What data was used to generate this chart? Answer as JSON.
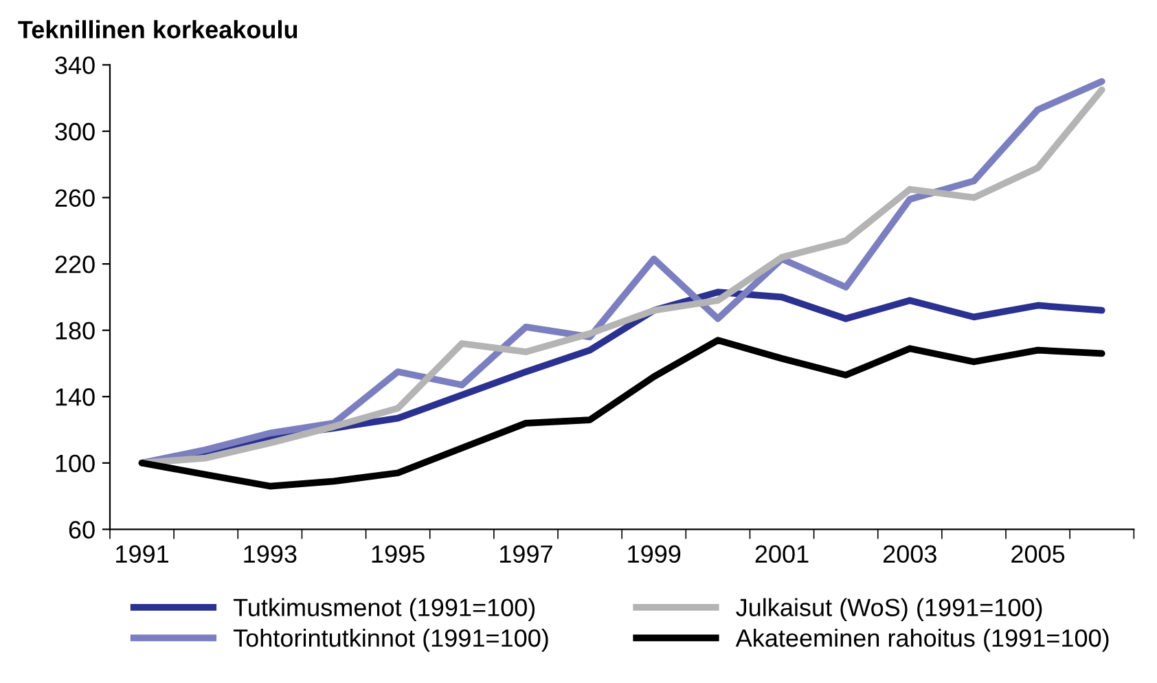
{
  "chart_data": {
    "type": "line",
    "title": "Teknillinen korkeakoulu",
    "categories": [
      "1991",
      null,
      "1993",
      null,
      "1995",
      null,
      "1997",
      null,
      "1999",
      null,
      "2001",
      null,
      "2003",
      null,
      "2005",
      null
    ],
    "series": [
      {
        "name": "Tutkimusmenot (1991=100)",
        "color": "#2b3190",
        "values": [
          100,
          107,
          116,
          121,
          127,
          141,
          155,
          168,
          192,
          203,
          200,
          187,
          198,
          188,
          195,
          192
        ]
      },
      {
        "name": "Tohtorintutkinnot (1991=100)",
        "color": "#7b7fc0",
        "values": [
          100,
          108,
          118,
          124,
          155,
          147,
          182,
          176,
          223,
          187,
          223,
          206,
          259,
          270,
          313,
          330
        ]
      },
      {
        "name": "Julkaisut (WoS) (1991=100)",
        "color": "#b4b4b4",
        "values": [
          100,
          103,
          112,
          122,
          133,
          172,
          167,
          178,
          192,
          198,
          224,
          234,
          265,
          260,
          278,
          325
        ]
      },
      {
        "name": "Akateeminen rahoitus (1991=100)",
        "color": "#000000",
        "values": [
          100,
          93,
          86,
          89,
          94,
          109,
          124,
          126,
          152,
          174,
          163,
          153,
          169,
          161,
          168,
          166
        ]
      }
    ],
    "ylim": [
      60,
      340
    ],
    "yticks": [
      60,
      100,
      140,
      180,
      220,
      260,
      300,
      340
    ],
    "grid": false,
    "legend": "bottom",
    "marker": "none",
    "line_style": "solid"
  }
}
